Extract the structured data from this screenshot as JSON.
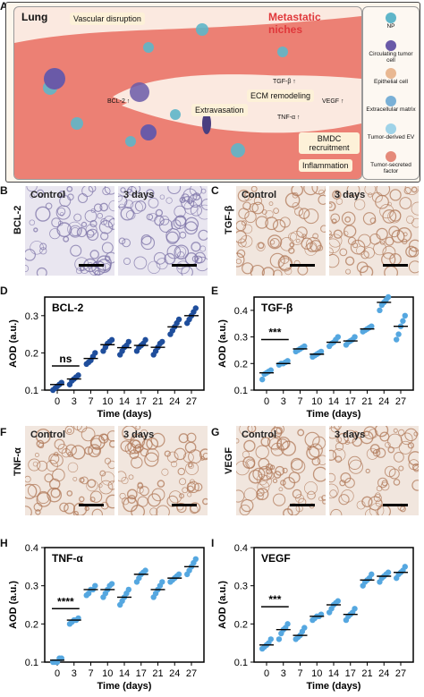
{
  "panel_letters": {
    "a": "A",
    "b": "B",
    "c": "C",
    "d": "D",
    "e": "E",
    "f": "F",
    "g": "G",
    "h": "H",
    "i": "I"
  },
  "schematic": {
    "title": "Lung",
    "header": "Metastatic niches",
    "labels": {
      "vascular": "Vascular disruption",
      "bcl2": "BCL-2 ↑",
      "tgfb": "TGF-β ↑",
      "ecm": "ECM remodeling",
      "vegf": "VEGF ↑",
      "tnfa": "TNF-α ↑",
      "extravasation": "Extravasation",
      "bmdc": "BMDC recruitment",
      "inflammation": "Inflammation"
    },
    "legend": [
      {
        "name": "NP",
        "color": "#5fb6c9"
      },
      {
        "name": "Circulating tumor cell",
        "color": "#6a5aa8"
      },
      {
        "name": "Epithelial cell",
        "color": "#e9b892"
      },
      {
        "name": "Extracellular matrix",
        "color": "#7ab0d6"
      },
      {
        "name": "Tumor-derived EV",
        "color": "#9fd3e8"
      },
      {
        "name": "Tumor-secreted factor",
        "color": "#e58a7a"
      }
    ]
  },
  "histology": {
    "control": "Control",
    "days": "3 days",
    "markers": {
      "b": "BCL-2",
      "c": "TGF-β",
      "f": "TNF-α",
      "g": "VEGF"
    },
    "colors": {
      "bcl2_bg": "#e9e6f0",
      "bcl2_fg": "#7d74a8",
      "brown_bg": "#f1e6de",
      "brown_fg": "#b07a5a"
    }
  },
  "charts_text": {
    "ylabel": "AOD (a.u.)",
    "xlabel": "Time (days)"
  },
  "chart_data": [
    {
      "panel": "D",
      "type": "scatter",
      "title": "BCL-2",
      "ylim": [
        0.1,
        0.35
      ],
      "yticks": [
        "0.1",
        "0.2",
        "0.3"
      ],
      "x": [
        "0",
        "3",
        "7",
        "10",
        "14",
        "17",
        "21",
        "24",
        "27"
      ],
      "color": "#1f4e9c",
      "values": [
        [
          0.1,
          0.105,
          0.11,
          0.115,
          0.12
        ],
        [
          0.115,
          0.125,
          0.13,
          0.135,
          0.14
        ],
        [
          0.17,
          0.175,
          0.18,
          0.19,
          0.2
        ],
        [
          0.205,
          0.215,
          0.225,
          0.23,
          0.235
        ],
        [
          0.195,
          0.205,
          0.215,
          0.22,
          0.23
        ],
        [
          0.205,
          0.215,
          0.22,
          0.225,
          0.235
        ],
        [
          0.195,
          0.205,
          0.215,
          0.225,
          0.23
        ],
        [
          0.25,
          0.26,
          0.27,
          0.28,
          0.29
        ],
        [
          0.28,
          0.29,
          0.3,
          0.31,
          0.32
        ]
      ],
      "means": [
        0.115,
        0.13,
        0.185,
        0.222,
        0.214,
        0.22,
        0.215,
        0.27,
        0.3
      ],
      "sig": {
        "text": "ns",
        "from": 0,
        "to": 1,
        "y": 0.165
      }
    },
    {
      "panel": "E",
      "type": "scatter",
      "title": "TGF-β",
      "ylim": [
        0.1,
        0.45
      ],
      "yticks": [
        "0.1",
        "0.2",
        "0.3",
        "0.4"
      ],
      "x": [
        "0",
        "3",
        "7",
        "10",
        "14",
        "17",
        "21",
        "24",
        "27"
      ],
      "color": "#55a7e0",
      "values": [
        [
          0.14,
          0.16,
          0.165,
          0.17,
          0.175
        ],
        [
          0.195,
          0.2,
          0.2,
          0.205,
          0.21
        ],
        [
          0.245,
          0.25,
          0.255,
          0.26,
          0.265
        ],
        [
          0.225,
          0.23,
          0.235,
          0.24,
          0.245
        ],
        [
          0.265,
          0.275,
          0.28,
          0.29,
          0.3
        ],
        [
          0.27,
          0.28,
          0.285,
          0.29,
          0.3
        ],
        [
          0.32,
          0.325,
          0.33,
          0.335,
          0.34
        ],
        [
          0.4,
          0.42,
          0.43,
          0.44,
          0.45
        ],
        [
          0.29,
          0.31,
          0.34,
          0.36,
          0.38
        ]
      ],
      "means": [
        0.165,
        0.2,
        0.255,
        0.235,
        0.28,
        0.285,
        0.33,
        0.43,
        0.34
      ],
      "sig": {
        "text": "***",
        "from": 0,
        "to": 1,
        "y": 0.29
      }
    },
    {
      "panel": "H",
      "type": "scatter",
      "title": "TNF-α",
      "ylim": [
        0.1,
        0.4
      ],
      "yticks": [
        "0.1",
        "0.2",
        "0.3",
        "0.4"
      ],
      "x": [
        "0",
        "3",
        "7",
        "10",
        "14",
        "17",
        "21",
        "24",
        "27"
      ],
      "color": "#55a7e0",
      "values": [
        [
          0.1,
          0.1,
          0.1,
          0.11,
          0.11
        ],
        [
          0.2,
          0.205,
          0.21,
          0.21,
          0.215
        ],
        [
          0.275,
          0.28,
          0.29,
          0.29,
          0.3
        ],
        [
          0.27,
          0.28,
          0.29,
          0.3,
          0.305
        ],
        [
          0.25,
          0.26,
          0.27,
          0.28,
          0.29
        ],
        [
          0.31,
          0.32,
          0.33,
          0.335,
          0.34
        ],
        [
          0.27,
          0.28,
          0.29,
          0.3,
          0.31
        ],
        [
          0.31,
          0.315,
          0.32,
          0.325,
          0.33
        ],
        [
          0.33,
          0.34,
          0.35,
          0.36,
          0.37
        ]
      ],
      "means": [
        0.105,
        0.21,
        0.29,
        0.29,
        0.27,
        0.33,
        0.29,
        0.32,
        0.35
      ],
      "sig": {
        "text": "****",
        "from": 0,
        "to": 1,
        "y": 0.24
      }
    },
    {
      "panel": "I",
      "type": "scatter",
      "title": "VEGF",
      "ylim": [
        0.1,
        0.4
      ],
      "yticks": [
        "0.1",
        "0.2",
        "0.3",
        "0.4"
      ],
      "x": [
        "0",
        "3",
        "7",
        "10",
        "14",
        "17",
        "21",
        "24",
        "27"
      ],
      "color": "#55a7e0",
      "values": [
        [
          0.135,
          0.14,
          0.145,
          0.15,
          0.16
        ],
        [
          0.16,
          0.175,
          0.185,
          0.19,
          0.2
        ],
        [
          0.16,
          0.165,
          0.17,
          0.18,
          0.19
        ],
        [
          0.21,
          0.215,
          0.22,
          0.22,
          0.225
        ],
        [
          0.23,
          0.24,
          0.25,
          0.255,
          0.26
        ],
        [
          0.21,
          0.22,
          0.225,
          0.23,
          0.24
        ],
        [
          0.3,
          0.31,
          0.315,
          0.32,
          0.33
        ],
        [
          0.31,
          0.32,
          0.325,
          0.33,
          0.335
        ],
        [
          0.32,
          0.33,
          0.335,
          0.34,
          0.35
        ]
      ],
      "means": [
        0.145,
        0.185,
        0.17,
        0.22,
        0.25,
        0.225,
        0.315,
        0.325,
        0.335
      ],
      "sig": {
        "text": "***",
        "from": 0,
        "to": 1,
        "y": 0.245
      }
    }
  ]
}
